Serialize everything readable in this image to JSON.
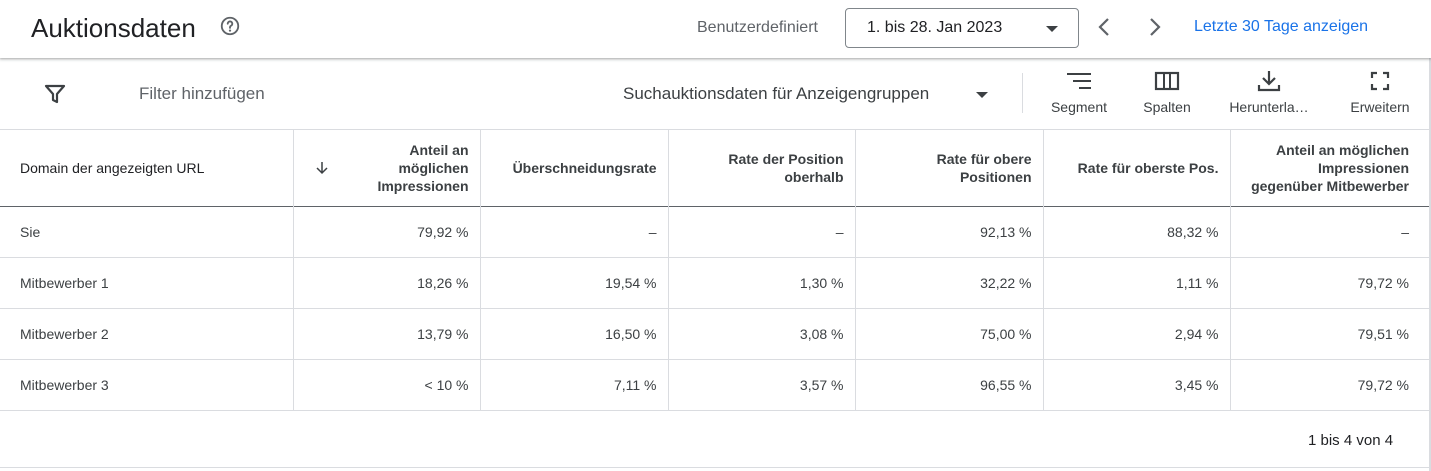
{
  "header": {
    "title": "Auktionsdaten",
    "range_label": "Benutzerdefiniert",
    "date_range": "1. bis 28. Jan 2023",
    "last_30_link": "Letzte 30 Tage anzeigen"
  },
  "toolbar": {
    "filter_placeholder": "Filter hinzufügen",
    "report_select": "Suchauktionsdaten für Anzeigengruppen",
    "segment_label": "Segment",
    "columns_label": "Spalten",
    "download_label": "Herunterla…",
    "expand_label": "Erweitern"
  },
  "table": {
    "headers": [
      "Domain der angezeigten URL",
      "Anteil an möglichen Impressionen",
      "Überschneidungsrate",
      "Rate der Position oberhalb",
      "Rate für obere Positionen",
      "Rate für oberste Pos.",
      "Anteil an möglichen Impressionen gegenüber Mitbewerber"
    ],
    "rows": [
      [
        "Sie",
        "79,92 %",
        "–",
        "–",
        "92,13 %",
        "88,32 %",
        "–"
      ],
      [
        "Mitbewerber 1",
        "18,26 %",
        "19,54 %",
        "1,30 %",
        "32,22 %",
        "1,11 %",
        "79,72 %"
      ],
      [
        "Mitbewerber 2",
        "13,79 %",
        "16,50 %",
        "3,08 %",
        "75,00 %",
        "2,94 %",
        "79,51 %"
      ],
      [
        "Mitbewerber 3",
        "< 10 %",
        "7,11 %",
        "3,57 %",
        "96,55 %",
        "3,45 %",
        "79,72 %"
      ]
    ]
  },
  "pager": {
    "text": "1 bis 4 von 4"
  },
  "colors": {
    "accent": "#1a73e8",
    "text": "#3c4043",
    "border": "#dadce0"
  }
}
